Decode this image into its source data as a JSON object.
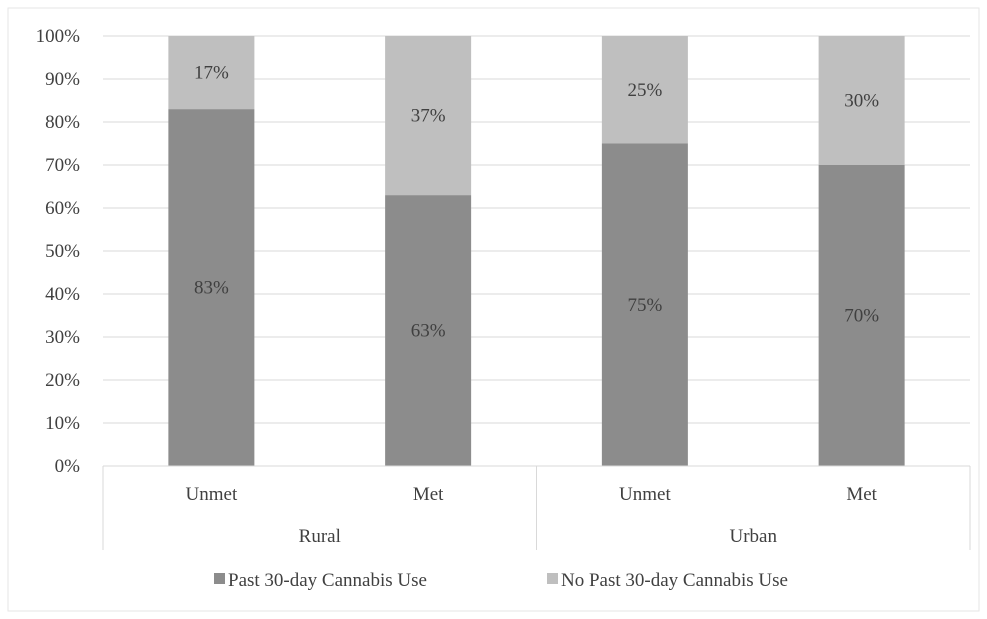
{
  "chart_data": {
    "type": "bar",
    "stacked": true,
    "percent": true,
    "ylim": [
      0,
      100
    ],
    "yticks": [
      "0%",
      "10%",
      "20%",
      "30%",
      "40%",
      "50%",
      "60%",
      "70%",
      "80%",
      "90%",
      "100%"
    ],
    "categories": [
      "Unmet",
      "Met",
      "Unmet",
      "Met"
    ],
    "groups": [
      {
        "label": "Rural",
        "categories": [
          "Unmet",
          "Met"
        ]
      },
      {
        "label": "Urban",
        "categories": [
          "Unmet",
          "Met"
        ]
      }
    ],
    "series": [
      {
        "name": "Past 30-day Cannabis Use",
        "color": "#8c8c8c",
        "values": [
          83,
          63,
          75,
          70
        ],
        "labels": [
          "83%",
          "63%",
          "75%",
          "70%"
        ]
      },
      {
        "name": "No Past 30-day Cannabis Use",
        "color": "#bfbfbf",
        "values": [
          17,
          37,
          25,
          30
        ],
        "labels": [
          "17%",
          "37%",
          "25%",
          "30%"
        ]
      }
    ],
    "grid": true,
    "legend": "bottom",
    "title": "",
    "xlabel": "",
    "ylabel": ""
  }
}
